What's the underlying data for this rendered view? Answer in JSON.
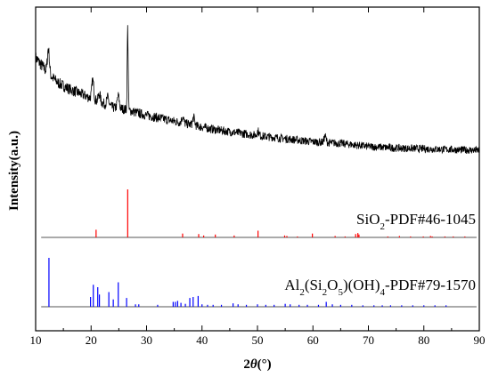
{
  "chart_data": {
    "type": "line",
    "xlabel_prefix": "2",
    "xlabel_theta": "θ",
    "xlabel_unit": "(°)",
    "ylabel": "Intensity(a.u.)",
    "xlim": [
      10,
      90
    ],
    "x_ticks": [
      "10",
      "20",
      "30",
      "40",
      "50",
      "60",
      "70",
      "80",
      "90"
    ],
    "pattern": {
      "color": "#000000",
      "baseline": [
        [
          10,
          0.8
        ],
        [
          12,
          0.71
        ],
        [
          14,
          0.64
        ],
        [
          16,
          0.6
        ],
        [
          18,
          0.57
        ],
        [
          20,
          0.54
        ],
        [
          22,
          0.51
        ],
        [
          24,
          0.48
        ],
        [
          26,
          0.47
        ],
        [
          28,
          0.45
        ],
        [
          30,
          0.43
        ],
        [
          34,
          0.4
        ],
        [
          38,
          0.37
        ],
        [
          42,
          0.34
        ],
        [
          46,
          0.32
        ],
        [
          50,
          0.3
        ],
        [
          55,
          0.28
        ],
        [
          60,
          0.26
        ],
        [
          65,
          0.25
        ],
        [
          70,
          0.23
        ],
        [
          75,
          0.22
        ],
        [
          80,
          0.215
        ],
        [
          85,
          0.21
        ],
        [
          90,
          0.205
        ]
      ],
      "peaks": [
        {
          "x": 12.3,
          "h": 0.16
        },
        {
          "x": 20.3,
          "h": 0.12
        },
        {
          "x": 21.5,
          "h": 0.05
        },
        {
          "x": 23.0,
          "h": 0.05
        },
        {
          "x": 24.9,
          "h": 0.08
        },
        {
          "x": 26.6,
          "h": 0.53
        },
        {
          "x": 36.5,
          "h": 0.04
        },
        {
          "x": 38.5,
          "h": 0.05
        },
        {
          "x": 50.1,
          "h": 0.03
        },
        {
          "x": 62.2,
          "h": 0.04
        }
      ]
    },
    "references": [
      {
        "label_parts": [
          {
            "t": "SiO",
            "sub": false
          },
          {
            "t": "2",
            "sub": true
          },
          {
            "t": "-PDF#46-1045",
            "sub": false
          }
        ],
        "color": "#ff0000",
        "peaks": [
          [
            20.9,
            0.16
          ],
          [
            26.6,
            1.0
          ],
          [
            36.5,
            0.08
          ],
          [
            39.4,
            0.07
          ],
          [
            40.3,
            0.04
          ],
          [
            42.4,
            0.06
          ],
          [
            45.8,
            0.04
          ],
          [
            50.1,
            0.14
          ],
          [
            54.9,
            0.04
          ],
          [
            55.3,
            0.03
          ],
          [
            57.2,
            0.02
          ],
          [
            59.9,
            0.08
          ],
          [
            64.0,
            0.03
          ],
          [
            65.8,
            0.02
          ],
          [
            67.7,
            0.07
          ],
          [
            68.1,
            0.09
          ],
          [
            68.3,
            0.06
          ],
          [
            73.5,
            0.02
          ],
          [
            75.6,
            0.03
          ],
          [
            77.6,
            0.02
          ],
          [
            79.9,
            0.02
          ],
          [
            81.2,
            0.03
          ],
          [
            81.5,
            0.02
          ],
          [
            83.8,
            0.02
          ],
          [
            85.3,
            0.02
          ],
          [
            87.4,
            0.02
          ]
        ]
      },
      {
        "label_parts": [
          {
            "t": "Al",
            "sub": false
          },
          {
            "t": "2",
            "sub": true
          },
          {
            "t": "(Si",
            "sub": false
          },
          {
            "t": "2",
            "sub": true
          },
          {
            "t": "O",
            "sub": false
          },
          {
            "t": "5",
            "sub": true
          },
          {
            "t": ")(OH)",
            "sub": false
          },
          {
            "t": "4",
            "sub": true
          },
          {
            "t": "-PDF#79-1570",
            "sub": false
          }
        ],
        "color": "#0000ff",
        "peaks": [
          [
            12.4,
            1.0
          ],
          [
            19.9,
            0.2
          ],
          [
            20.4,
            0.45
          ],
          [
            21.2,
            0.4
          ],
          [
            21.5,
            0.25
          ],
          [
            23.2,
            0.3
          ],
          [
            24.0,
            0.15
          ],
          [
            24.9,
            0.5
          ],
          [
            26.4,
            0.18
          ],
          [
            28.0,
            0.05
          ],
          [
            28.6,
            0.05
          ],
          [
            32.0,
            0.04
          ],
          [
            34.8,
            0.1
          ],
          [
            35.2,
            0.1
          ],
          [
            35.6,
            0.12
          ],
          [
            36.2,
            0.08
          ],
          [
            37.0,
            0.06
          ],
          [
            37.8,
            0.18
          ],
          [
            38.4,
            0.2
          ],
          [
            39.3,
            0.22
          ],
          [
            40.0,
            0.05
          ],
          [
            41.0,
            0.04
          ],
          [
            42.0,
            0.04
          ],
          [
            43.5,
            0.04
          ],
          [
            45.6,
            0.07
          ],
          [
            46.5,
            0.05
          ],
          [
            48.0,
            0.04
          ],
          [
            50.0,
            0.05
          ],
          [
            51.5,
            0.04
          ],
          [
            53.0,
            0.04
          ],
          [
            55.0,
            0.06
          ],
          [
            55.9,
            0.05
          ],
          [
            57.5,
            0.04
          ],
          [
            59.0,
            0.04
          ],
          [
            61.0,
            0.04
          ],
          [
            62.4,
            0.1
          ],
          [
            63.5,
            0.05
          ],
          [
            65.0,
            0.04
          ],
          [
            67.0,
            0.04
          ],
          [
            69.0,
            0.03
          ],
          [
            71.0,
            0.03
          ],
          [
            72.5,
            0.03
          ],
          [
            74.0,
            0.03
          ],
          [
            76.0,
            0.03
          ],
          [
            78.0,
            0.03
          ],
          [
            80.0,
            0.03
          ],
          [
            82.0,
            0.03
          ],
          [
            84.0,
            0.03
          ]
        ]
      }
    ]
  }
}
